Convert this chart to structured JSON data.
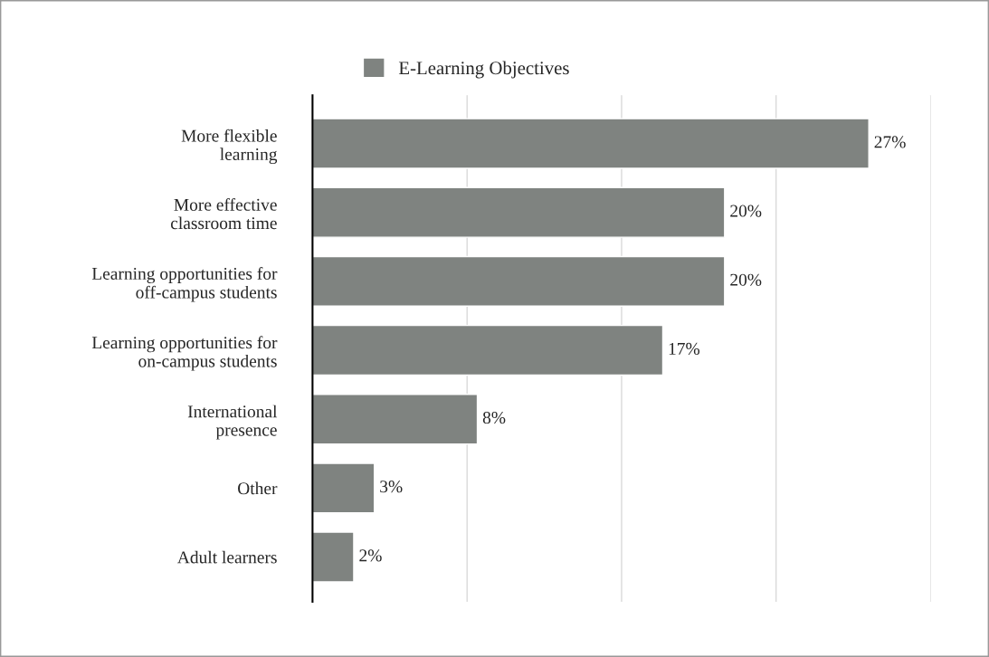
{
  "chart_data": {
    "type": "bar",
    "orientation": "horizontal",
    "categories": [
      "More flexible\nlearning",
      "More effective\nclassroom time",
      "Learning opportunities for\noff-campus students",
      "Learning opportunities for\non-campus students",
      "International\npresence",
      "Other",
      "Adult learners"
    ],
    "series": [
      {
        "name": "E-Learning Objectives",
        "color": "#7f8380",
        "values": [
          27,
          20,
          20,
          17,
          8,
          3,
          2
        ],
        "value_labels": [
          "27%",
          "20%",
          "20%",
          "17%",
          "8%",
          "3%",
          "2%"
        ]
      }
    ],
    "xlim": [
      0,
      30
    ],
    "xticks": [
      {
        "value": 0,
        "label": null
      },
      {
        "value": 7.5,
        "label": null
      },
      {
        "value": 15,
        "label": null
      },
      {
        "value": 22.5,
        "label": null
      },
      {
        "value": 30,
        "label": null
      }
    ],
    "tick_labels": "y",
    "grid": "x",
    "legend": "top"
  }
}
